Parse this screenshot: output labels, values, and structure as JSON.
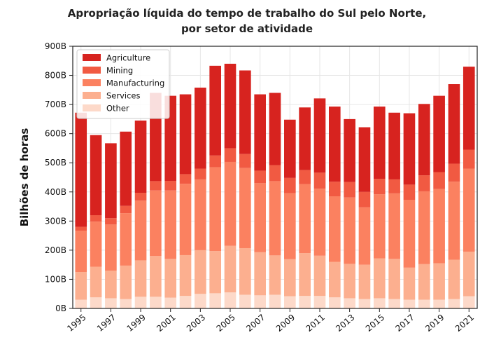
{
  "chart_data": {
    "type": "bar",
    "stacked": true,
    "title_lines": [
      "Apropriação líquida do tempo de trabalho do Sul pelo Norte,",
      "por setor de atividade"
    ],
    "ylabel": "Bilhões de horas",
    "xlabel": "",
    "ylim": [
      0,
      900
    ],
    "yticks": [
      0,
      100,
      200,
      300,
      400,
      500,
      600,
      700,
      800,
      900
    ],
    "ytick_labels": [
      "0B",
      "100B",
      "200B",
      "300B",
      "400B",
      "500B",
      "600B",
      "700B",
      "800B",
      "900B"
    ],
    "grid": true,
    "legend_position": "top-left",
    "categories": [
      "1995",
      "1996",
      "1997",
      "1998",
      "1999",
      "2000",
      "2001",
      "2002",
      "2003",
      "2004",
      "2005",
      "2006",
      "2007",
      "2008",
      "2009",
      "2010",
      "2011",
      "2012",
      "2013",
      "2014",
      "2015",
      "2016",
      "2017",
      "2018",
      "2019",
      "2020",
      "2021"
    ],
    "xtick_labels": [
      "1995",
      "1997",
      "1999",
      "2001",
      "2003",
      "2005",
      "2007",
      "2009",
      "2011",
      "2013",
      "2015",
      "2017",
      "2019",
      "2021"
    ],
    "series": [
      {
        "name": "Other",
        "color": "#fdd9c9",
        "values": [
          30,
          38,
          35,
          32,
          40,
          40,
          37,
          43,
          50,
          52,
          55,
          47,
          45,
          47,
          42,
          43,
          43,
          38,
          35,
          32,
          35,
          32,
          30,
          30,
          30,
          32,
          42
        ]
      },
      {
        "name": "Services",
        "color": "#fcaf8f",
        "values": [
          95,
          105,
          95,
          115,
          125,
          140,
          133,
          140,
          150,
          145,
          160,
          160,
          148,
          135,
          127,
          147,
          138,
          122,
          118,
          118,
          137,
          138,
          110,
          122,
          125,
          135,
          153
        ]
      },
      {
        "name": "Manufacturing",
        "color": "#fb8160",
        "values": [
          142,
          155,
          158,
          180,
          205,
          225,
          235,
          245,
          243,
          288,
          288,
          275,
          237,
          255,
          227,
          237,
          230,
          225,
          228,
          197,
          220,
          225,
          233,
          250,
          255,
          268,
          285
        ]
      },
      {
        "name": "Mining",
        "color": "#f15a42",
        "values": [
          13,
          22,
          22,
          25,
          27,
          32,
          33,
          33,
          37,
          40,
          47,
          48,
          43,
          55,
          52,
          48,
          55,
          50,
          53,
          53,
          53,
          48,
          52,
          55,
          58,
          62,
          65
        ]
      },
      {
        "name": "Agriculture",
        "color": "#d7231f",
        "values": [
          392,
          275,
          257,
          255,
          248,
          303,
          292,
          274,
          278,
          308,
          290,
          287,
          262,
          248,
          200,
          215,
          255,
          258,
          216,
          222,
          248,
          229,
          245,
          245,
          262,
          273,
          285
        ]
      }
    ],
    "totals": [
      672,
      595,
      567,
      607,
      645,
      740,
      730,
      735,
      758,
      833,
      840,
      817,
      735,
      740,
      648,
      690,
      721,
      693,
      650,
      622,
      693,
      672,
      670,
      702,
      730,
      770,
      830
    ]
  }
}
